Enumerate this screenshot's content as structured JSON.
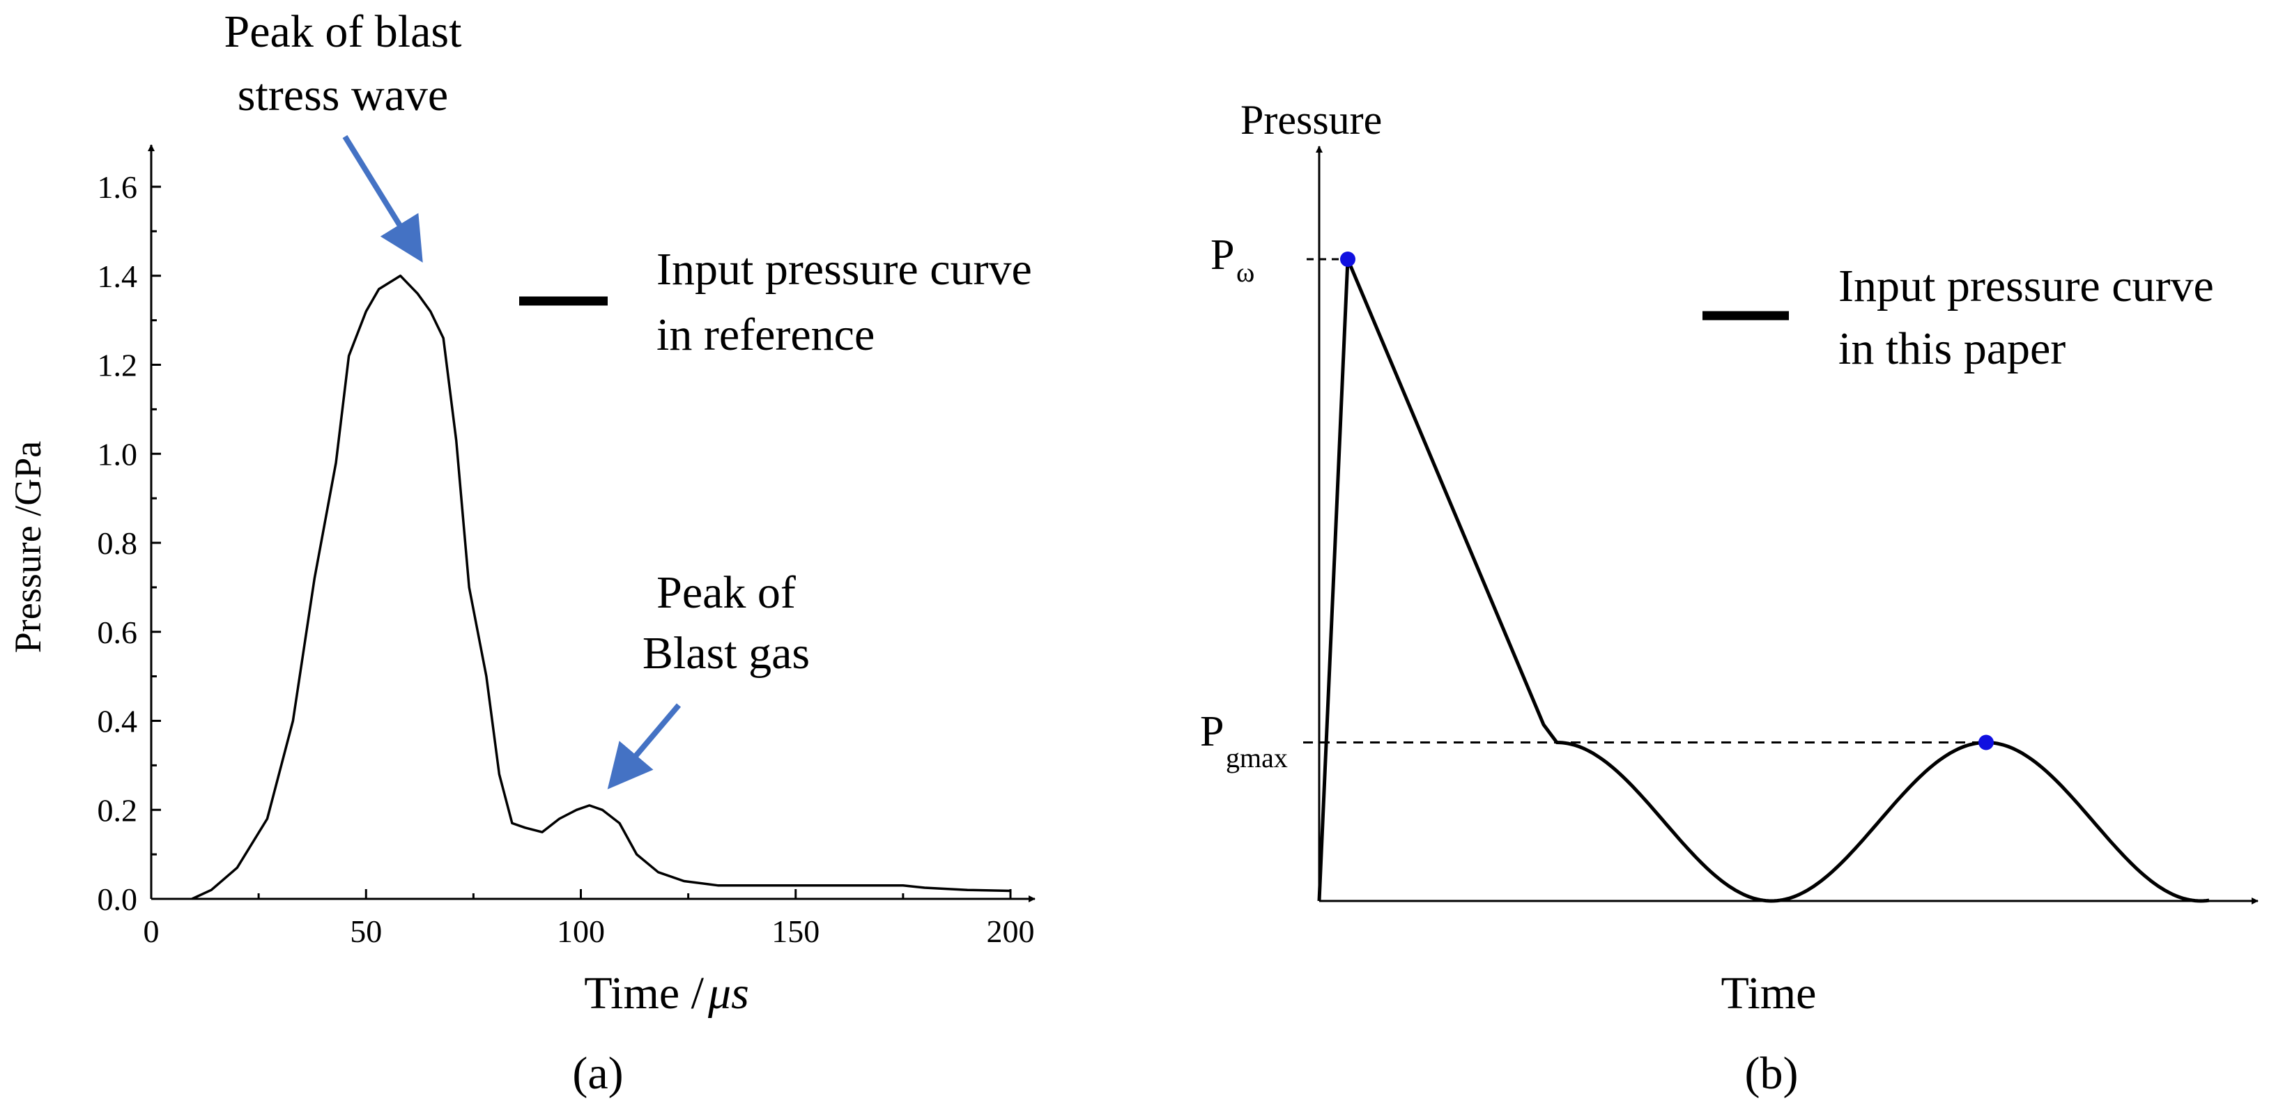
{
  "chart_data": [
    {
      "panel_label": "(a)",
      "type": "line",
      "xlabel_text": "Time /",
      "xlabel_unit": "μs",
      "ylabel": "Pressure /GPa",
      "xlim": [
        0,
        200
      ],
      "ylim": [
        0,
        1.6
      ],
      "xticks": [
        0,
        50,
        100,
        150,
        200
      ],
      "yticks": [
        0.0,
        0.2,
        0.4,
        0.6,
        0.8,
        1.0,
        1.2,
        1.4,
        1.6
      ],
      "grid": false,
      "legend": {
        "position": "top-right",
        "lines": [
          "Input pressure curve",
          "in reference"
        ]
      },
      "series": [
        {
          "color": "#000000",
          "x": [
            9.5,
            14,
            20,
            27,
            33,
            38,
            43,
            46,
            50,
            53,
            58,
            62,
            65,
            68,
            71,
            74,
            78,
            81,
            84,
            87,
            91,
            95,
            99,
            102,
            105,
            109,
            113,
            118,
            124,
            132,
            140,
            150,
            160,
            170,
            175,
            180,
            190,
            200
          ],
          "y": [
            0.0,
            0.02,
            0.07,
            0.18,
            0.4,
            0.72,
            0.98,
            1.22,
            1.32,
            1.37,
            1.4,
            1.36,
            1.32,
            1.26,
            1.03,
            0.7,
            0.5,
            0.28,
            0.17,
            0.16,
            0.15,
            0.18,
            0.2,
            0.21,
            0.2,
            0.17,
            0.1,
            0.06,
            0.04,
            0.03,
            0.03,
            0.03,
            0.03,
            0.03,
            0.03,
            0.025,
            0.02,
            0.018
          ]
        }
      ],
      "annotations": [
        {
          "lines": [
            "Peak of blast",
            "stress wave"
          ],
          "arrow_color": "#4472C4",
          "points_to": {
            "x": 62,
            "y": 1.4
          }
        },
        {
          "lines": [
            "Peak of",
            "Blast gas"
          ],
          "arrow_color": "#4472C4",
          "points_to": {
            "x": 101,
            "y": 0.23
          }
        }
      ]
    },
    {
      "panel_label": "(b)",
      "type": "line",
      "xlabel": "Time",
      "ylabel": "Pressure",
      "p_omega_label": {
        "main": "P",
        "sub": "ω"
      },
      "p_gmax_label": {
        "main": "P",
        "sub": "gmax"
      },
      "p_omega": 1.0,
      "p_gmax": 0.247,
      "grid": false,
      "legend": {
        "position": "top-right",
        "lines": [
          "Input pressure curve",
          "in this paper"
        ]
      },
      "marker_color": "#1010E0",
      "series": [
        {
          "color": "#000000",
          "segments": "rise from 0 to P_omega, linear decay to P_gmax, cosine oscillation between P_gmax and 0"
        }
      ]
    }
  ]
}
